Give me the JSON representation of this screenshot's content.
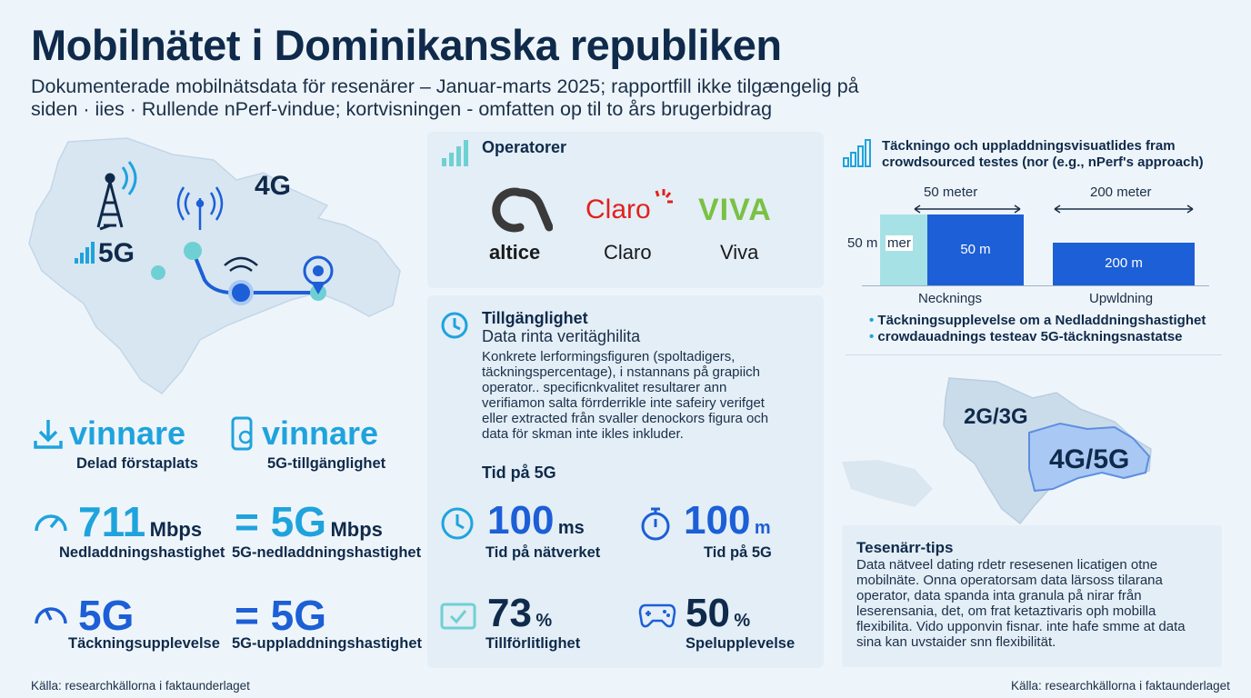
{
  "header": {
    "title": "Mobilnätet i Dominikanska republiken",
    "subtitle": "Dokumenterade mobilnätsdata för resenärer – Januar-marts 2025; rapportfill ikke tilgængelig på siden · iies · Rullende nPerf-vindue; kortvisningen - omfatten op til to års brugerbidrag"
  },
  "left_map": {
    "label_4g": "4G",
    "label_5g": "5G"
  },
  "winners": [
    {
      "value": "vinnare",
      "caption": "Delad förstaplats",
      "icon": "download-icon"
    },
    {
      "value": "vinnare",
      "caption": "5G-tillgänglighet",
      "icon": "phone-icon"
    }
  ],
  "speeds": [
    {
      "value": "711",
      "unit": "Mbps",
      "caption": "Nedladdningshastighet",
      "icon": "speedometer-icon"
    },
    {
      "value": "= 5G",
      "unit": "Mbps",
      "caption": "5G-nedladdningshastighet",
      "icon": "equals-icon"
    }
  ],
  "coverage": [
    {
      "value": "5G",
      "caption": "Täckningsupplevelse",
      "icon": "gauge-icon"
    },
    {
      "value": "= 5G",
      "caption": "5G-uppladdningshastighet",
      "icon": "equals-icon"
    }
  ],
  "operators": {
    "heading": "Operatorer",
    "items": [
      {
        "logo": "altice",
        "name": "altice",
        "color": "#1a1a1a"
      },
      {
        "logo": "Claro",
        "name": "Claro",
        "color": "#e2211c"
      },
      {
        "logo": "VIVA",
        "name": "Viva",
        "color": "#7ac143"
      }
    ]
  },
  "availability": {
    "heading": "Tillgänglighet",
    "subheading": "Data rinta veritäghilita",
    "body": "Konkrete lerformingsfiguren (spoltadigers, täckningspercentage), i nstannans på grapiich operator.. specificnkvalitet resultarer ann verifiamon salta förrderrikle inte safeiry verifget eller extracted från svaller denockors figura och data för skman inte ikles inkluder.",
    "time_heading": "Tid på 5G"
  },
  "metrics": [
    {
      "value": "100",
      "unit": "ms",
      "caption": "Tid på nätverket",
      "icon": "clock-icon"
    },
    {
      "value": "100",
      "unit": "m",
      "caption": "Tid på 5G",
      "icon": "stopwatch-icon"
    },
    {
      "value": "73",
      "unit": "%",
      "caption": "Tillförlitlighet",
      "icon": "check-icon"
    },
    {
      "value": "50",
      "unit": "%",
      "caption": "Spelupplevelse",
      "icon": "gamepad-icon"
    }
  ],
  "coverage_visual": {
    "heading_line1": "Täckningo och uppladdningsvisuatlides fram",
    "heading_line2": "crowdsourced testes (nor (e.g., nPerf's approach)",
    "dim_left": "50 meter",
    "dim_right": "200 meter",
    "side_label": "50 m",
    "side_label_overlay": "mer",
    "bar_left_label": "50 m",
    "bar_right_label": "200 m",
    "axis_left": "Necknings",
    "axis_right": "Upwldning",
    "bullets": [
      "Täckningsupplevelse om a Nedladdningshastighet",
      "crowdauadnings testeav 5G-täckningsnastatse"
    ]
  },
  "right_map": {
    "label_2g3g": "2G/3G",
    "label_4g5g": "4G/5G"
  },
  "tips": {
    "heading": "Tesenärr-tips",
    "body": "Data nätveel dating rdetr resesenen licatigen otne mobilnäte. Onna operatorsam data lärsoss tilarana operator, data spanda inta granula på nirar från leserensania, det, om frat ketaztivaris oph mobilla flexibilita. Vido upponvin fisnar. inte hafe smme at data sina kan uvstaider snn flexibilität."
  },
  "footer": {
    "left": "Källa: researchkällorna i faktaunderlaget",
    "right": "Källa: researchkällorna i faktaunderlaget"
  }
}
